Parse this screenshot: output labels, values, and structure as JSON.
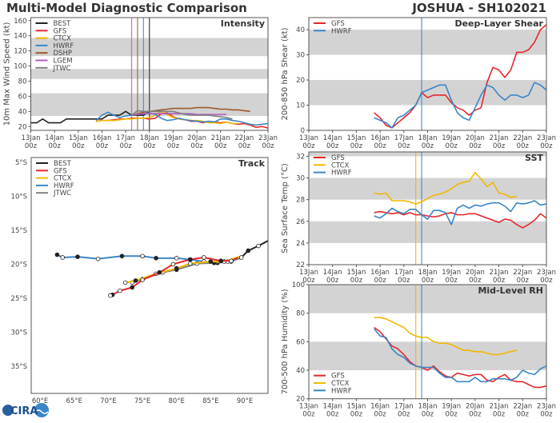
{
  "header": {
    "left_title": "Multi-Model Diagnostic Comparison",
    "right_title": "JOSHUA - SH102021"
  },
  "logo": {
    "text": "CIRA"
  },
  "colors": {
    "BEST": "#222222",
    "GFS": "#e8262a",
    "CTCX": "#f0b800",
    "HWRF": "#3a86c8",
    "DSHP": "#9c5a2c",
    "LGEM": "#b05cc0",
    "JTWC": "#808080",
    "band": "#d3d3d3"
  },
  "time_ticks": [
    [
      "13Jan",
      "00z"
    ],
    [
      "14Jan",
      "00z"
    ],
    [
      "15Jan",
      "00z"
    ],
    [
      "16Jan",
      "00z"
    ],
    [
      "17Jan",
      "00z"
    ],
    [
      "18Jan",
      "00z"
    ],
    [
      "19Jan",
      "00z"
    ],
    [
      "20Jan",
      "00z"
    ],
    [
      "21Jan",
      "00z"
    ],
    [
      "22Jan",
      "00z"
    ],
    [
      "23Jan",
      "00z"
    ]
  ],
  "chart_data": [
    {
      "id": "intensity",
      "type": "line",
      "title": "Intensity",
      "ylabel": "10m Max Wind Speed (kt)",
      "xlim": [
        "13Jan 00z",
        "23Jan 00z"
      ],
      "ylim": [
        15,
        164
      ],
      "yticks": [
        "20",
        "40",
        "60",
        "80",
        "100",
        "120",
        "140",
        "160"
      ],
      "bands": [
        [
          34,
          64
        ],
        [
          83,
          96
        ],
        [
          113,
          137
        ]
      ],
      "legend": [
        "BEST",
        "GFS",
        "CTCX",
        "HWRF",
        "DSHP",
        "LGEM",
        "JTWC"
      ],
      "legend_position": "top-left",
      "vlines": [
        {
          "model": "LGEM",
          "time": "17Jan 06z"
        },
        {
          "model": "DSHP",
          "time": "17Jan 12z"
        },
        {
          "model": "HWRF",
          "time": "17Jan 18z"
        },
        {
          "model": "BEST",
          "time": "18Jan 00z"
        }
      ],
      "series": [
        {
          "name": "BEST",
          "start": "13Jan 00z",
          "step_hours": 6,
          "values": [
            25,
            25,
            30,
            25,
            25,
            25,
            30,
            30,
            30,
            30,
            30,
            30,
            30,
            35,
            35,
            35,
            40,
            35,
            35,
            35,
            40
          ]
        },
        {
          "name": "GFS",
          "start": "15Jan 18z",
          "step_hours": 6,
          "values": [
            27,
            28,
            28,
            29,
            30,
            30,
            31,
            31,
            31,
            30,
            31,
            37,
            38,
            33,
            30,
            29,
            27,
            27,
            25,
            27,
            26,
            25,
            26,
            24,
            23,
            24,
            22,
            19,
            20,
            18
          ]
        },
        {
          "name": "CTCX",
          "start": "15Jan 18z",
          "step_hours": 6,
          "values": [
            27,
            28,
            28,
            28,
            29,
            30,
            30,
            31,
            31,
            32,
            35,
            40,
            36,
            32,
            30,
            29,
            28,
            28,
            27,
            25,
            25,
            24,
            26,
            24,
            24
          ]
        },
        {
          "name": "HWRF",
          "start": "15Jan 18z",
          "step_hours": 6,
          "values": [
            28,
            35,
            39,
            35,
            32,
            34,
            35,
            36,
            37,
            38,
            36,
            31,
            28,
            29,
            31,
            29,
            28,
            27,
            26,
            27,
            26,
            30,
            30,
            28,
            27,
            25,
            23,
            22,
            23,
            24
          ]
        },
        {
          "name": "DSHP",
          "start": "17Jan 06z",
          "step_hours": 6,
          "values": [
            35,
            37,
            39,
            40,
            41,
            42,
            43,
            44,
            44,
            44,
            44,
            45,
            45,
            45,
            44,
            43,
            43,
            42,
            42,
            41,
            40
          ]
        },
        {
          "name": "LGEM",
          "start": "17Jan 06z",
          "step_hours": 6,
          "values": [
            35,
            36,
            37,
            37,
            37,
            37,
            37,
            37,
            37,
            37,
            37,
            36,
            36,
            36,
            36,
            36,
            36
          ]
        },
        {
          "name": "JTWC",
          "start": "17Jan 06z",
          "step_hours": 6,
          "values": [
            35,
            41,
            40,
            40,
            40,
            40,
            40,
            40,
            38,
            36,
            35,
            35,
            35,
            35,
            34,
            33,
            32,
            30
          ]
        }
      ]
    },
    {
      "id": "shear",
      "type": "line",
      "title": "Deep-Layer Shear",
      "ylabel": "200-850 hPa Shear (kt)",
      "xlim": [
        "13Jan 00z",
        "23Jan 00z"
      ],
      "ylim": [
        0,
        44.8
      ],
      "yticks": [
        "0",
        "10",
        "20",
        "30",
        "40"
      ],
      "bands": [
        [
          10,
          20
        ],
        [
          30,
          40
        ]
      ],
      "legend": [
        "GFS",
        "HWRF"
      ],
      "legend_position": "top-left",
      "vlines": [
        {
          "model": "HWRF",
          "time": "17Jan 18z"
        }
      ],
      "series": [
        {
          "name": "GFS",
          "start": "15Jan 18z",
          "step_hours": 6,
          "values": [
            7,
            5,
            2,
            1,
            3,
            5,
            7,
            10,
            15,
            13,
            14,
            14,
            14,
            11,
            9,
            8,
            6,
            8,
            9,
            19,
            25,
            24,
            21,
            24,
            31,
            31,
            32,
            35,
            40,
            42
          ]
        },
        {
          "name": "HWRF",
          "start": "15Jan 18z",
          "step_hours": 6,
          "values": [
            5,
            4,
            3,
            1,
            5,
            6,
            8,
            10,
            15,
            16,
            17,
            18,
            18,
            12,
            7,
            5,
            4,
            9,
            14,
            18,
            17,
            14,
            12,
            14,
            14,
            13,
            14,
            19,
            18,
            16
          ]
        }
      ]
    },
    {
      "id": "sst",
      "type": "line",
      "title": "SST",
      "ylabel": "Sea Surface Temp (°C)",
      "xlim": [
        "13Jan 00z",
        "23Jan 00z"
      ],
      "ylim": [
        22,
        32.4
      ],
      "yticks": [
        "22",
        "24",
        "26",
        "28",
        "30",
        "32"
      ],
      "bands": [
        [
          24,
          26
        ],
        [
          28,
          30
        ],
        [
          32,
          34
        ]
      ],
      "legend": [
        "GFS",
        "CTCX",
        "HWRF"
      ],
      "legend_position": "top-left",
      "vlines": [
        {
          "model": "CTCX",
          "time": "17Jan 12z"
        },
        {
          "model": "HWRF",
          "time": "17Jan 18z"
        }
      ],
      "series": [
        {
          "name": "GFS",
          "start": "15Jan 18z",
          "step_hours": 6,
          "values": [
            26.8,
            26.9,
            26.8,
            26.7,
            26.8,
            26.6,
            26.8,
            26.6,
            26.6,
            26.5,
            26.4,
            26.5,
            26.7,
            26.8,
            26.6,
            26.6,
            26.7,
            26.7,
            26.5,
            26.3,
            26.1,
            25.9,
            26.2,
            26.1,
            25.7,
            25.4,
            25.7,
            26.1,
            26.7,
            26.3
          ]
        },
        {
          "name": "CTCX",
          "start": "15Jan 18z",
          "step_hours": 6,
          "values": [
            28.6,
            28.5,
            28.6,
            27.9,
            27.9,
            27.9,
            27.8,
            27.6,
            27.8,
            28.1,
            28.4,
            28.5,
            28.7,
            29.0,
            29.4,
            29.6,
            29.7,
            30.5,
            29.9,
            29.2,
            29.6,
            28.6,
            28.5,
            28.2,
            28.3
          ]
        },
        {
          "name": "HWRF",
          "start": "15Jan 18z",
          "step_hours": 6,
          "values": [
            26.5,
            26.3,
            26.7,
            27.2,
            26.9,
            26.7,
            27.1,
            27.1,
            26.6,
            26.2,
            27.0,
            27.0,
            26.8,
            25.7,
            27.2,
            27.5,
            27.2,
            27.5,
            27.4,
            27.6,
            27.7,
            27.7,
            27.4,
            26.9,
            27.7,
            27.6,
            27.7,
            27.9,
            27.5,
            27.6
          ]
        }
      ]
    },
    {
      "id": "rh",
      "type": "line",
      "title": "Mid-Level RH",
      "ylabel": "700-500 hPa Humidity (%)",
      "xlim": [
        "13Jan 00z",
        "23Jan 00z"
      ],
      "ylim": [
        20,
        100
      ],
      "yticks": [
        "20",
        "40",
        "60",
        "80",
        "100"
      ],
      "bands": [
        [
          40,
          60
        ],
        [
          80,
          100
        ]
      ],
      "legend": [
        "GFS",
        "CTCX",
        "HWRF"
      ],
      "legend_position": "bottom-left",
      "vlines": [
        {
          "model": "CTCX",
          "time": "17Jan 12z"
        },
        {
          "model": "HWRF",
          "time": "17Jan 18z"
        }
      ],
      "series": [
        {
          "name": "GFS",
          "start": "15Jan 18z",
          "step_hours": 6,
          "values": [
            70,
            67,
            62,
            57,
            55,
            51,
            46,
            43,
            42,
            40,
            43,
            39,
            36,
            35,
            38,
            37,
            36,
            37,
            37,
            33,
            32,
            35,
            37,
            33,
            32,
            32,
            30,
            28,
            28,
            29
          ]
        },
        {
          "name": "CTCX",
          "start": "15Jan 18z",
          "step_hours": 6,
          "values": [
            77,
            77,
            76,
            74,
            72,
            70,
            66,
            64,
            63,
            63,
            60,
            59,
            59,
            58,
            56,
            54,
            54,
            53,
            53,
            52,
            51,
            51,
            52,
            53,
            54
          ]
        },
        {
          "name": "HWRF",
          "start": "15Jan 18z",
          "step_hours": 6,
          "values": [
            69,
            64,
            63,
            55,
            51,
            49,
            45,
            43,
            42,
            42,
            42,
            38,
            35,
            35,
            32,
            32,
            32,
            35,
            32,
            32,
            34,
            34,
            34,
            33,
            35,
            40,
            38,
            37,
            41,
            43
          ]
        }
      ]
    },
    {
      "id": "track",
      "type": "line",
      "title": "Track",
      "xlim": [
        58.7,
        93.4
      ],
      "ylim": [
        -39.0,
        -4.3
      ],
      "xticks": [
        {
          "v": 60,
          "label": "60°E"
        },
        {
          "v": 65,
          "label": "65°E"
        },
        {
          "v": 70,
          "label": "70°E"
        },
        {
          "v": 75,
          "label": "75°E"
        },
        {
          "v": 80,
          "label": "80°E"
        },
        {
          "v": 85,
          "label": "85°E"
        },
        {
          "v": 90,
          "label": "90°E"
        }
      ],
      "yticks": [
        {
          "v": -5,
          "label": "5°S"
        },
        {
          "v": -10,
          "label": "10°S"
        },
        {
          "v": -15,
          "label": "15°S"
        },
        {
          "v": -20,
          "label": "20°S"
        },
        {
          "v": -25,
          "label": "25°S"
        },
        {
          "v": -30,
          "label": "30°S"
        },
        {
          "v": -35,
          "label": "35°S"
        }
      ],
      "legend": [
        "BEST",
        "GFS",
        "CTCX",
        "HWRF",
        "JTWC"
      ],
      "legend_position": "top-left",
      "series": [
        {
          "name": "HWRF",
          "lon": [
            89,
            88,
            86,
            84,
            82,
            80,
            77,
            75,
            72,
            68.5,
            65.5,
            63.3,
            62.5
          ],
          "lat": [
            -19.2,
            -19.6,
            -19.8,
            -19.6,
            -19.3,
            -19.1,
            -19.1,
            -18.8,
            -18.8,
            -19.2,
            -18.9,
            -19.0,
            -18.6
          ]
        },
        {
          "name": "JTWC",
          "lon": [
            89.5,
            87.5,
            85.5,
            83,
            80,
            78,
            75,
            73.5
          ],
          "lat": [
            -19.1,
            -19.6,
            -19.8,
            -19.9,
            -20.8,
            -21.2,
            -22.2,
            -22.7
          ]
        },
        {
          "name": "CTCX",
          "lon": [
            89.5,
            87,
            85,
            82,
            80,
            77,
            74,
            72.5
          ],
          "lat": [
            -18.8,
            -19.6,
            -19.6,
            -19.9,
            -20.6,
            -21.4,
            -22.4,
            -22.7
          ]
        },
        {
          "name": "GFS",
          "lon": [
            89,
            88,
            86.5,
            84,
            82,
            79.5,
            77.5,
            75,
            73.5,
            71.7,
            70.6,
            70.3
          ],
          "lat": [
            -19.0,
            -19.5,
            -19.5,
            -19.0,
            -19.3,
            -20.0,
            -21.2,
            -22.3,
            -23.4,
            -23.9,
            -24.5,
            -24.6
          ]
        },
        {
          "name": "BEST",
          "lon": [
            93.5,
            92,
            90.5,
            89.5
          ],
          "lat": [
            -16.5,
            -17.3,
            -18.0,
            -19.0
          ]
        }
      ]
    }
  ]
}
